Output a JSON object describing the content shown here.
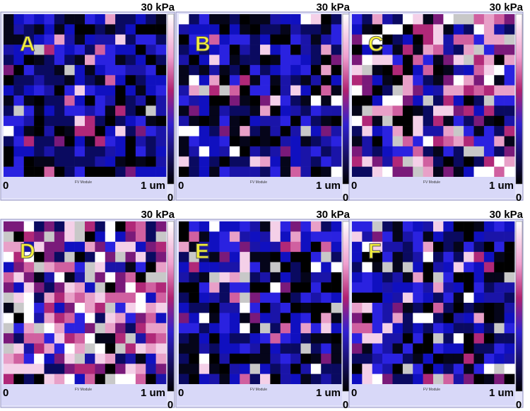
{
  "panels": [
    {
      "label": "A",
      "scale_max": "30 kPa",
      "origin": "0",
      "x_extent": "1 um",
      "module": "FV Module",
      "scale_min": "0"
    },
    {
      "label": "B",
      "scale_max": "30 kPa",
      "origin": "0",
      "x_extent": "1 um",
      "module": "FV Module",
      "scale_min": "0"
    },
    {
      "label": "C",
      "scale_max": "30 kPa",
      "origin": "0",
      "x_extent": "1 um",
      "module": "FV Module",
      "scale_min": "0"
    },
    {
      "label": "D",
      "scale_max": "30 kPa",
      "origin": "0",
      "x_extent": "1 um",
      "module": "FV Module",
      "scale_min": "0"
    },
    {
      "label": "E",
      "scale_max": "30 kPa",
      "origin": "0",
      "x_extent": "1 um",
      "module": "FV Module",
      "scale_min": "0"
    },
    {
      "label": "F",
      "scale_max": "30 kPa",
      "origin": "0",
      "x_extent": "1 um",
      "module": "FV Module",
      "scale_min": "0"
    }
  ]
}
